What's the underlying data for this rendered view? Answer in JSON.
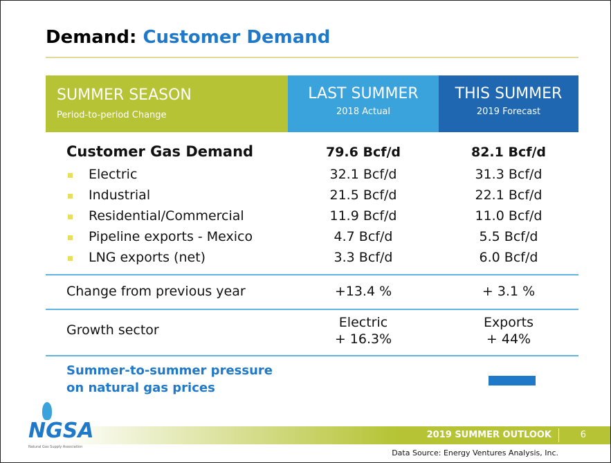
{
  "title": {
    "lead": "Demand:",
    "main": "Customer Demand"
  },
  "header": [
    {
      "title": "SUMMER SEASON",
      "subtitle": "Period-to-period Change"
    },
    {
      "title": "LAST SUMMER",
      "subtitle": "2018 Actual"
    },
    {
      "title": "THIS SUMMER",
      "subtitle": "2019 Forecast"
    }
  ],
  "total": {
    "label": "Customer Gas Demand",
    "last": "79.6 Bcf/d",
    "this": "82.1 Bcf/d"
  },
  "items": [
    {
      "label": "Electric",
      "last": "32.1 Bcf/d",
      "this": "31.3 Bcf/d"
    },
    {
      "label": "Industrial",
      "last": "21.5 Bcf/d",
      "this": "22.1 Bcf/d"
    },
    {
      "label": "Residential/Commercial",
      "last": "11.9 Bcf/d",
      "this": "11.0 Bcf/d"
    },
    {
      "label": "Pipeline exports - Mexico",
      "last": "4.7 Bcf/d",
      "this": "5.5 Bcf/d"
    },
    {
      "label": "LNG exports (net)",
      "last": "3.3 Bcf/d",
      "this": "6.0 Bcf/d"
    }
  ],
  "change": {
    "label": "Change from previous year",
    "last": "+13.4 %",
    "this": "+ 3.1 %"
  },
  "growth": {
    "label": "Growth sector",
    "last": [
      "Electric",
      "+ 16.3%"
    ],
    "this": [
      "Exports",
      "+ 44%"
    ]
  },
  "pressure": {
    "label": [
      "Summer-to-summer pressure",
      "on natural gas prices"
    ]
  },
  "footer": {
    "outlook": "2019 SUMMER OUTLOOK",
    "page": "6",
    "source": "Data Source: Energy Ventures Analysis, Inc.",
    "logo": "NGSA",
    "org": "Natural Gas Supply Association"
  }
}
